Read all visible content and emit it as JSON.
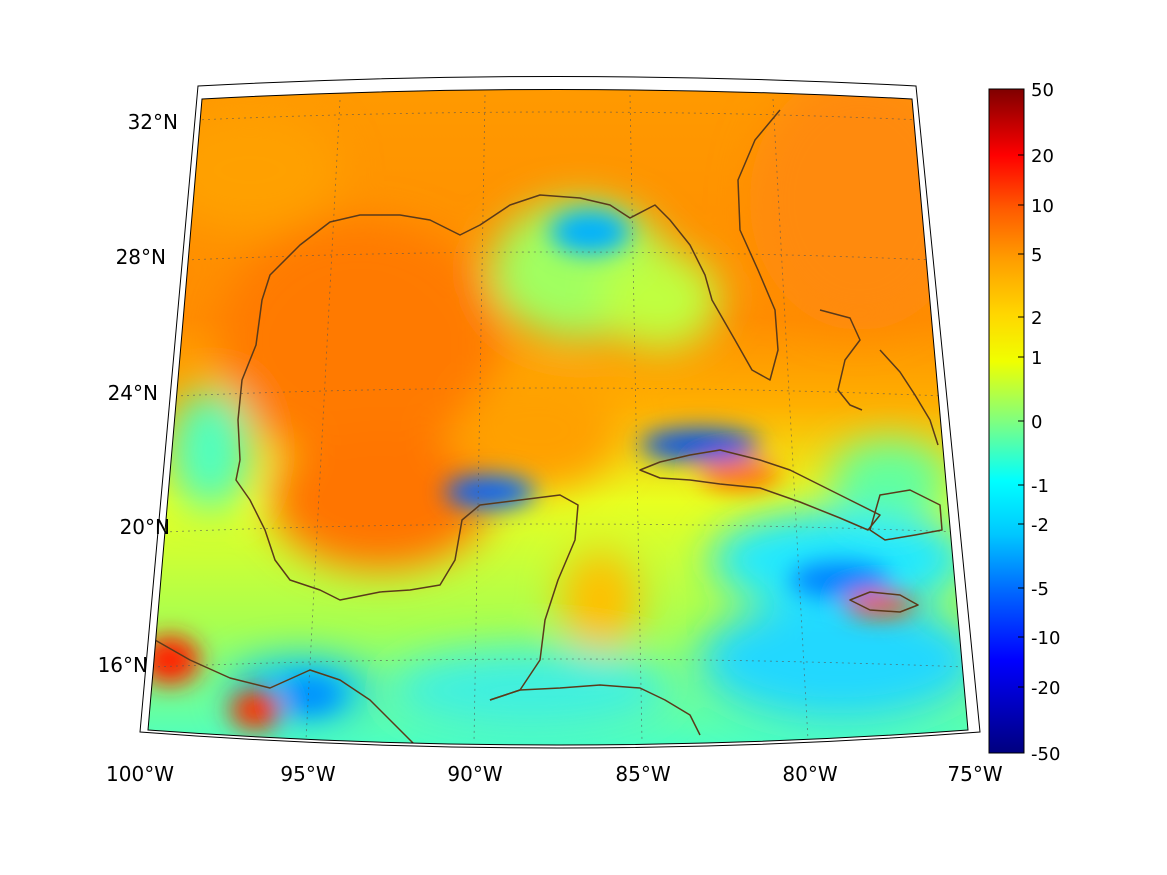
{
  "map": {
    "projection": "lambert-conformal-conic",
    "lon_range": [
      -100,
      -75
    ],
    "lat_range": [
      14,
      33
    ],
    "lon_ticks": [
      {
        "value": -100,
        "label": "100°W"
      },
      {
        "value": -95,
        "label": "95°W"
      },
      {
        "value": -90,
        "label": "90°W"
      },
      {
        "value": -85,
        "label": "85°W"
      },
      {
        "value": -80,
        "label": "80°W"
      },
      {
        "value": -75,
        "label": "75°W"
      }
    ],
    "lat_ticks": [
      {
        "value": 16,
        "label": "16°N"
      },
      {
        "value": 20,
        "label": "20°N"
      },
      {
        "value": 24,
        "label": "24°N"
      },
      {
        "value": 28,
        "label": "28°N"
      },
      {
        "value": 32,
        "label": "32°N"
      }
    ],
    "grid": true,
    "frame": "black-white-striped",
    "coastline_color": "#5a3a1a"
  },
  "colorbar": {
    "position": "right",
    "colormap": "jet",
    "scale": "symmetric-log",
    "tick_labels": [
      "50",
      "20",
      "10",
      "5",
      "2",
      "1",
      "0",
      "-1",
      "-2",
      "-5",
      "-10",
      "-20",
      "-50"
    ]
  },
  "field": {
    "description_regions": [
      {
        "lon": -88.5,
        "lat": 28.8,
        "value": -3
      },
      {
        "lon": -89.5,
        "lat": 21.5,
        "value": -5
      },
      {
        "lon": -83.5,
        "lat": 22.8,
        "value": -8
      },
      {
        "lon": -79.5,
        "lat": 18.2,
        "value": -4
      },
      {
        "lon": -94.0,
        "lat": 15.3,
        "value": -3
      },
      {
        "lon": -99.0,
        "lat": 16.0,
        "value": 12
      },
      {
        "lon": -93.5,
        "lat": 25.5,
        "value": 6
      },
      {
        "lon": -78.0,
        "lat": 29.5,
        "value": 7
      }
    ]
  }
}
